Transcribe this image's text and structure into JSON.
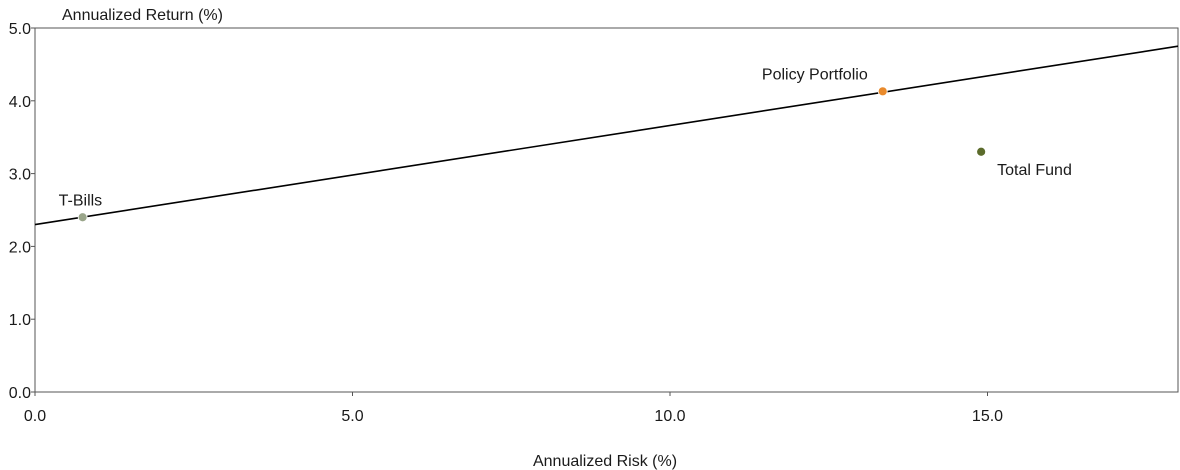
{
  "chart_data": {
    "type": "scatter",
    "xlabel": "Annualized Risk (%)",
    "ylabel": "Annualized Return (%)",
    "xlim": [
      0,
      18
    ],
    "ylim": [
      0,
      5
    ],
    "xticks": [
      "0.0",
      "5.0",
      "10.0",
      "15.0"
    ],
    "xtick_values": [
      0,
      5,
      10,
      15
    ],
    "yticks": [
      "0.0",
      "1.0",
      "2.0",
      "3.0",
      "4.0",
      "5.0"
    ],
    "ytick_values": [
      0,
      1,
      2,
      3,
      4,
      5
    ],
    "grid": false,
    "points": [
      {
        "label": "T-Bills",
        "x": 0.75,
        "y": 2.4,
        "color": "#9aa58a",
        "label_position": "above"
      },
      {
        "label": "Policy Portfolio",
        "x": 13.35,
        "y": 4.13,
        "color": "#e98a2b",
        "label_position": "above-left"
      },
      {
        "label": "Total Fund",
        "x": 14.9,
        "y": 3.3,
        "color": "#5b6b2b",
        "label_position": "below-right"
      }
    ],
    "line": {
      "x": [
        0,
        18
      ],
      "y": [
        2.3,
        4.75
      ],
      "color": "#000000"
    }
  }
}
